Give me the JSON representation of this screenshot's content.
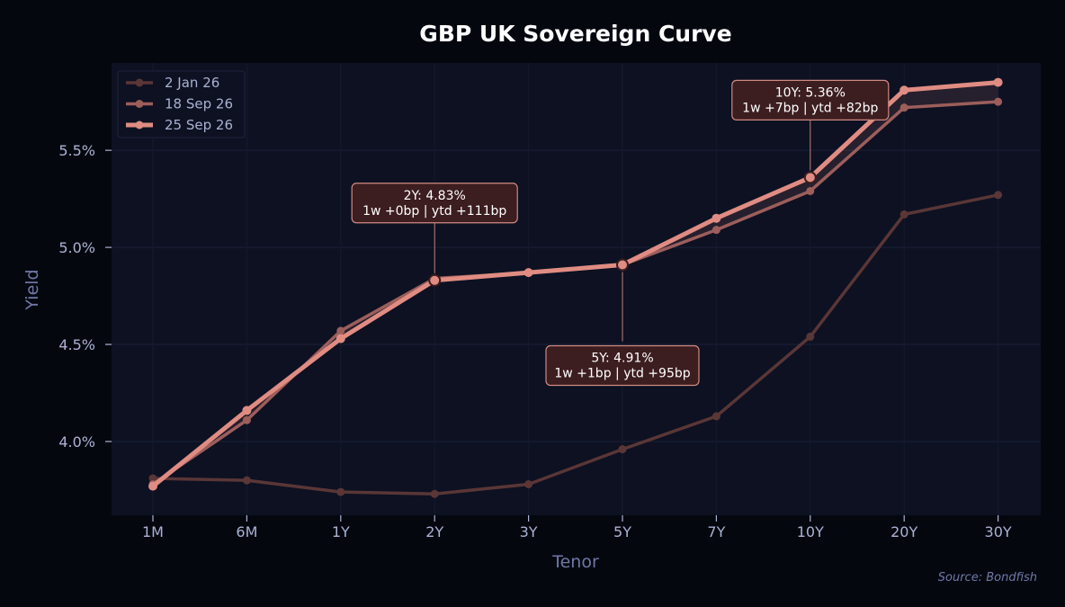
{
  "chart_data": {
    "type": "line",
    "title": "GBP UK Sovereign Curve",
    "xlabel": "Tenor",
    "ylabel": "Yield",
    "categories": [
      "1M",
      "6M",
      "1Y",
      "2Y",
      "3Y",
      "5Y",
      "7Y",
      "10Y",
      "20Y",
      "30Y"
    ],
    "ylim": [
      3.62,
      5.95
    ],
    "yticks": [
      4.0,
      4.5,
      5.0,
      5.5
    ],
    "ytick_labels": [
      "4.0%",
      "4.5%",
      "5.0%",
      "5.5%"
    ],
    "grid": true,
    "legend_position": "top-left",
    "series": [
      {
        "name": "2 Jan 26",
        "color": "#5a3636",
        "values": [
          3.81,
          3.8,
          3.74,
          3.73,
          3.78,
          3.96,
          4.13,
          4.54,
          5.17,
          5.27
        ]
      },
      {
        "name": "18 Sep 26",
        "color": "#9c5e5b",
        "values": [
          3.78,
          4.11,
          4.57,
          4.84,
          4.87,
          4.91,
          5.09,
          5.29,
          5.72,
          5.75
        ]
      },
      {
        "name": "25 Sep 26",
        "color": "#e08c82",
        "values": [
          3.77,
          4.16,
          4.53,
          4.83,
          4.87,
          4.91,
          5.15,
          5.36,
          5.81,
          5.85
        ]
      }
    ],
    "annotations": [
      {
        "category": "2Y",
        "value": 4.83,
        "line1": "2Y: 4.83%",
        "line2": "1w +0bp | ytd +111bp",
        "placement": "above"
      },
      {
        "category": "5Y",
        "value": 4.91,
        "line1": "5Y: 4.91%",
        "line2": "1w +1bp | ytd +95bp",
        "placement": "below"
      },
      {
        "category": "10Y",
        "value": 5.36,
        "line1": "10Y: 5.36%",
        "line2": "1w +7bp | ytd +82bp",
        "placement": "above"
      }
    ],
    "source": "Source: Bondfish"
  }
}
